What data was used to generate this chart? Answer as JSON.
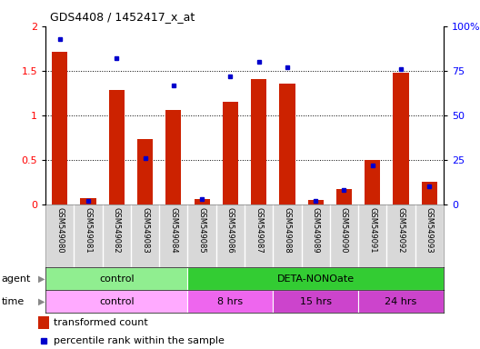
{
  "title": "GDS4408 / 1452417_x_at",
  "samples": [
    "GSM549080",
    "GSM549081",
    "GSM549082",
    "GSM549083",
    "GSM549084",
    "GSM549085",
    "GSM549086",
    "GSM549087",
    "GSM549088",
    "GSM549089",
    "GSM549090",
    "GSM549091",
    "GSM549092",
    "GSM549093"
  ],
  "red_values": [
    1.72,
    0.07,
    1.29,
    0.74,
    1.06,
    0.06,
    1.15,
    1.41,
    1.36,
    0.05,
    0.17,
    0.5,
    1.48,
    0.26
  ],
  "blue_values": [
    93,
    2,
    82,
    26,
    67,
    3,
    72,
    80,
    77,
    2,
    8,
    22,
    76,
    10
  ],
  "agent_groups": [
    {
      "label": "control",
      "start": 0,
      "end": 4,
      "color": "#90EE90"
    },
    {
      "label": "DETA-NONOate",
      "start": 5,
      "end": 13,
      "color": "#33CC33"
    }
  ],
  "time_groups": [
    {
      "label": "control",
      "start": 0,
      "end": 4,
      "color": "#FFAAFF"
    },
    {
      "label": "8 hrs",
      "start": 5,
      "end": 7,
      "color": "#EE66EE"
    },
    {
      "label": "15 hrs",
      "start": 8,
      "end": 10,
      "color": "#CC44CC"
    },
    {
      "label": "24 hrs",
      "start": 11,
      "end": 13,
      "color": "#CC44CC"
    }
  ],
  "red_color": "#CC2200",
  "blue_color": "#0000CC",
  "ylim_left": [
    0,
    2
  ],
  "ylim_right": [
    0,
    100
  ],
  "yticks_left": [
    0,
    0.5,
    1.0,
    1.5,
    2.0
  ],
  "yticks_right": [
    0,
    25,
    50,
    75,
    100
  ],
  "yticklabels_left": [
    "0",
    "0.5",
    "1",
    "1.5",
    "2"
  ],
  "yticklabels_right": [
    "0",
    "25",
    "50",
    "75",
    "100%"
  ],
  "bar_width": 0.55,
  "sample_bg": "#D8D8D8",
  "fig_width": 5.28,
  "fig_height": 3.84,
  "dpi": 100
}
